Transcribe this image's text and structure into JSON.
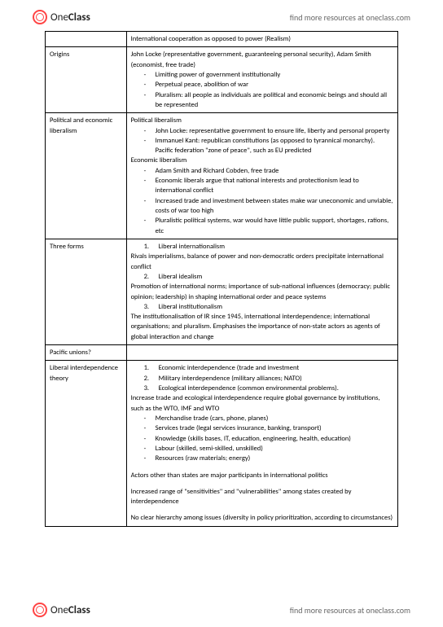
{
  "brand": {
    "one": "One",
    "class": "Class"
  },
  "header_link": "find more resources at oneclass.com",
  "footer_link": "find more resources at oneclass.com",
  "rows": {
    "r0": {
      "label": "",
      "intro": "International cooperation as opposed to power (Realism)"
    },
    "r1": {
      "label": "Origins",
      "lead": "John Locke (representative government, guaranteeing personal security), Adam Smith (economist, free trade)",
      "b1": "Limiting power of government institutionally",
      "b2": "Perpetual peace, abolition of war",
      "b3": "Pluralism: all people as individuals are political and economic beings and should all be represented"
    },
    "r2": {
      "label": "Political and economic liberalism",
      "h1": "Political liberalism",
      "p1": "John Locke: representative government to ensure life, liberty and personal property",
      "p2": "Immanuel Kant: republican constitutions (as opposed to tyrannical monarchy). Pacific federation \"zone of peace\", such as EU predicted",
      "h2": "Economic liberalism",
      "e1": "Adam Smith and Richard Cobden, free trade",
      "e2": "Economic liberals argue that national interests and protectionism lead to international conflict",
      "e3": "Increased trade and investment between states make war uneconomic and unviable, costs of war too high",
      "e4": "Pluralistic political systems, war would have little public support, shortages, rations, etc"
    },
    "r3": {
      "label": "Three forms",
      "n1": "Liberal internationalism",
      "d1": "Rivals imperialisms, balance of power and non-democratic orders precipitate international conflict",
      "n2": "Liberal idealism",
      "d2": "Promotion of international norms; importance of sub-national influences (democracy; public opinion; leadership) in shaping international order and peace systems",
      "n3": "Liberal institutionalism",
      "d3": "The institutionalisation of IR since 1945, international interdependence; international organisations; and pluralism. Emphasises the importance of non-state actors as agents of global interaction and change"
    },
    "r4": {
      "label": "Pacific unions?"
    },
    "r5": {
      "label": "Liberal interdependence theory",
      "n1": "Economic interdependence (trade and investment",
      "n2": "Military interdependence (military alliances; NATO)",
      "n3": "Ecological interdependence (common environmental problems).",
      "lead2": "Increase trade and ecological interdependence require global governance by institutions, such as the WTO, IMF and WTO",
      "b1": "Merchandise trade (cars, phone, planes)",
      "b2": "Services trade (legal services insurance, banking, transport)",
      "b3": "Knowledge (skills bases, IT, education, engineering, health, education)",
      "b4": "Labour (skilled, semi-skilled, unskilled)",
      "b5": "Resources (raw materials; energy)",
      "p1": "Actors other than states are major participants in international politics",
      "p2": "Increased range of \"sensitivities\" and \"vulnerabilities\" among states created by interdependence",
      "p3": "No clear hierarchy among issues (diversity in policy prioritization, according to circumstances)"
    }
  }
}
